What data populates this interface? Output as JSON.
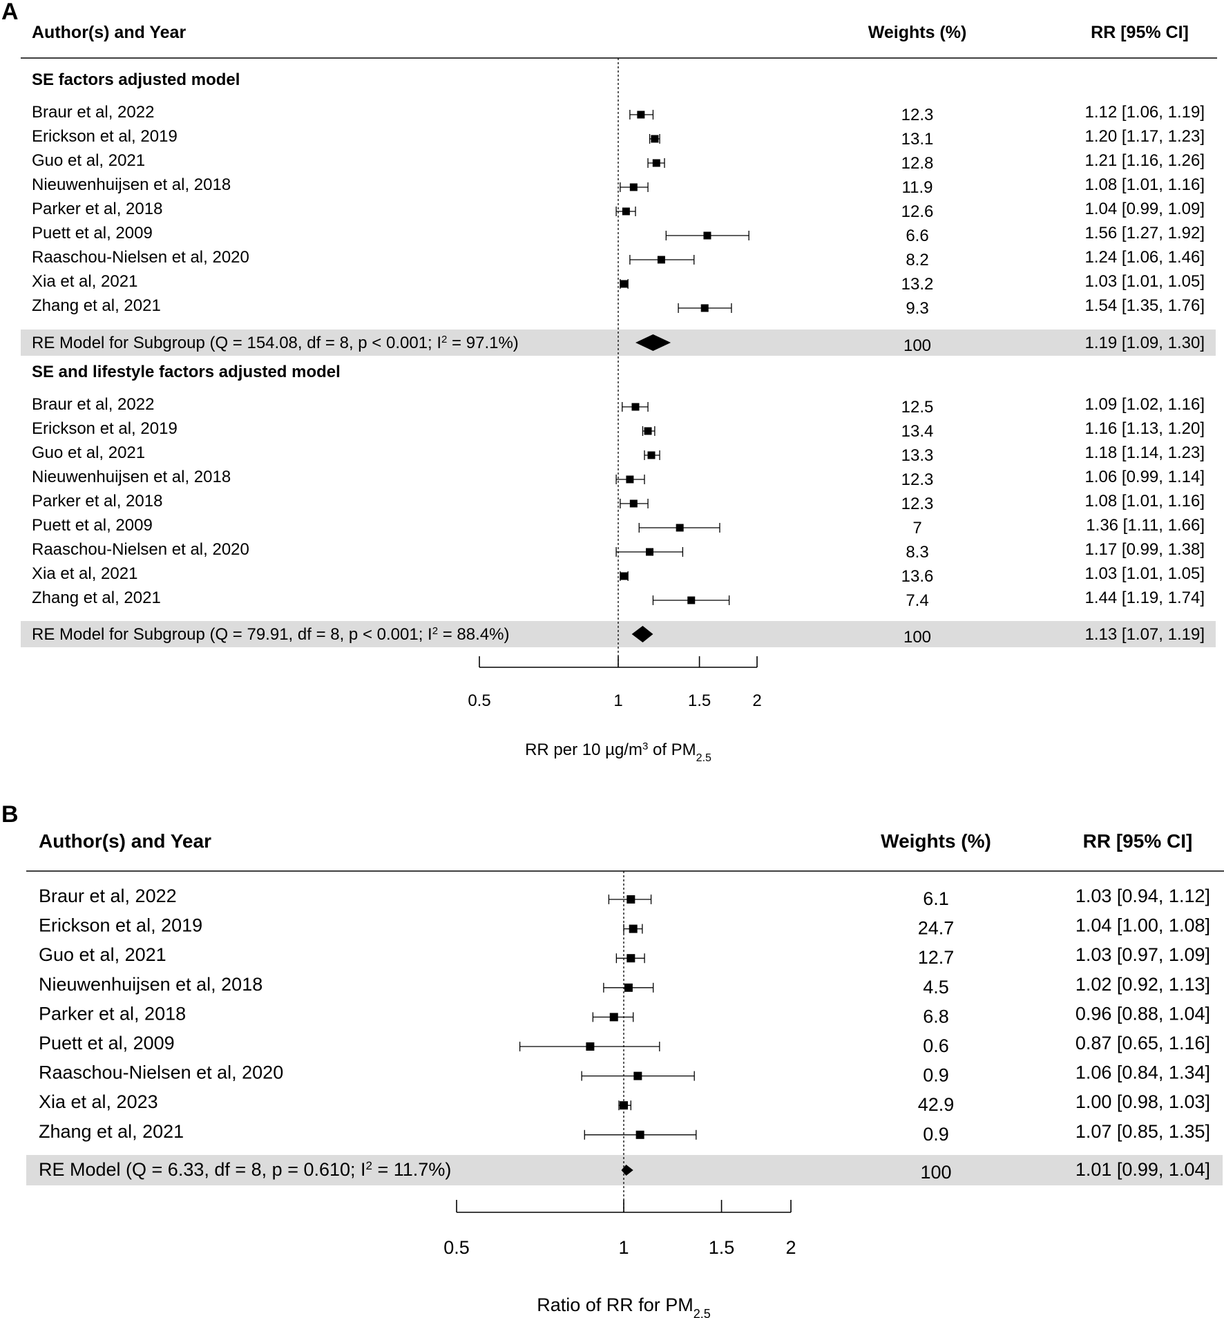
{
  "chart_data": [
    {
      "type": "forest",
      "panel_label": "A",
      "scale": "log",
      "header": {
        "study": "Author(s) and Year",
        "weights": "Weights (%)",
        "rr": "RR [95% CI]"
      },
      "xlabel": {
        "main": "RR per 10 µg/m",
        "sup": "3",
        "mid": " of PM",
        "sub": "2.5"
      },
      "xticks": [
        0.5,
        1,
        1.5,
        2
      ],
      "xtick_labels": [
        "0.5",
        "1",
        "1.5",
        "2"
      ],
      "xlim": [
        0.5,
        2
      ],
      "reference_line": 1,
      "groups": [
        {
          "title": "SE factors adjusted model",
          "studies": [
            {
              "name": "Braur et al, 2022",
              "rr": 1.12,
              "lo": 1.06,
              "hi": 1.19,
              "weight": "12.3",
              "label": "1.12 [1.06, 1.19]"
            },
            {
              "name": "Erickson et al, 2019",
              "rr": 1.2,
              "lo": 1.17,
              "hi": 1.23,
              "weight": "13.1",
              "label": "1.20 [1.17, 1.23]"
            },
            {
              "name": "Guo et al, 2021",
              "rr": 1.21,
              "lo": 1.16,
              "hi": 1.26,
              "weight": "12.8",
              "label": "1.21 [1.16, 1.26]"
            },
            {
              "name": "Nieuwenhuijsen et al, 2018",
              "rr": 1.08,
              "lo": 1.01,
              "hi": 1.16,
              "weight": "11.9",
              "label": "1.08 [1.01, 1.16]"
            },
            {
              "name": "Parker et al, 2018",
              "rr": 1.04,
              "lo": 0.99,
              "hi": 1.09,
              "weight": "12.6",
              "label": "1.04 [0.99, 1.09]"
            },
            {
              "name": "Puett et al, 2009",
              "rr": 1.56,
              "lo": 1.27,
              "hi": 1.92,
              "weight": "6.6",
              "label": "1.56 [1.27, 1.92]"
            },
            {
              "name": "Raaschou-Nielsen et al, 2020",
              "rr": 1.24,
              "lo": 1.06,
              "hi": 1.46,
              "weight": "8.2",
              "label": "1.24 [1.06, 1.46]"
            },
            {
              "name": "Xia et al, 2021",
              "rr": 1.03,
              "lo": 1.01,
              "hi": 1.05,
              "weight": "13.2",
              "label": "1.03 [1.01, 1.05]"
            },
            {
              "name": "Zhang et al, 2021",
              "rr": 1.54,
              "lo": 1.35,
              "hi": 1.76,
              "weight": "9.3",
              "label": "1.54 [1.35, 1.76]"
            }
          ],
          "summary": {
            "text": "RE Model for Subgroup (Q = 154.08, df = 8, p < 0.001; I",
            "sup": "2",
            "tail": " = 97.1%)",
            "rr": 1.19,
            "lo": 1.09,
            "hi": 1.3,
            "weight": "100",
            "label": "1.19 [1.09, 1.30]"
          }
        },
        {
          "title": "SE and lifestyle factors adjusted model",
          "studies": [
            {
              "name": "Braur et al, 2022",
              "rr": 1.09,
              "lo": 1.02,
              "hi": 1.16,
              "weight": "12.5",
              "label": "1.09 [1.02, 1.16]"
            },
            {
              "name": "Erickson et al, 2019",
              "rr": 1.16,
              "lo": 1.13,
              "hi": 1.2,
              "weight": "13.4",
              "label": "1.16 [1.13, 1.20]"
            },
            {
              "name": "Guo et al, 2021",
              "rr": 1.18,
              "lo": 1.14,
              "hi": 1.23,
              "weight": "13.3",
              "label": "1.18 [1.14, 1.23]"
            },
            {
              "name": "Nieuwenhuijsen et al, 2018",
              "rr": 1.06,
              "lo": 0.99,
              "hi": 1.14,
              "weight": "12.3",
              "label": "1.06 [0.99, 1.14]"
            },
            {
              "name": "Parker et al, 2018",
              "rr": 1.08,
              "lo": 1.01,
              "hi": 1.16,
              "weight": "12.3",
              "label": "1.08 [1.01, 1.16]"
            },
            {
              "name": "Puett et al, 2009",
              "rr": 1.36,
              "lo": 1.11,
              "hi": 1.66,
              "weight": "7",
              "label": "1.36 [1.11, 1.66]"
            },
            {
              "name": "Raaschou-Nielsen et al, 2020",
              "rr": 1.17,
              "lo": 0.99,
              "hi": 1.38,
              "weight": "8.3",
              "label": "1.17 [0.99, 1.38]"
            },
            {
              "name": "Xia et al, 2021",
              "rr": 1.03,
              "lo": 1.01,
              "hi": 1.05,
              "weight": "13.6",
              "label": "1.03 [1.01, 1.05]"
            },
            {
              "name": "Zhang et al, 2021",
              "rr": 1.44,
              "lo": 1.19,
              "hi": 1.74,
              "weight": "7.4",
              "label": "1.44 [1.19, 1.74]"
            }
          ],
          "summary": {
            "text": "RE Model for Subgroup (Q = 79.91, df = 8, p < 0.001; I",
            "sup": "2",
            "tail": " = 88.4%)",
            "rr": 1.13,
            "lo": 1.07,
            "hi": 1.19,
            "weight": "100",
            "label": "1.13 [1.07, 1.19]"
          }
        }
      ]
    },
    {
      "type": "forest",
      "panel_label": "B",
      "scale": "log",
      "header": {
        "study": "Author(s) and Year",
        "weights": "Weights (%)",
        "rr": "RR [95% CI]"
      },
      "xlabel": {
        "main": "Ratio of RR for PM",
        "sub": "2.5"
      },
      "xticks": [
        0.5,
        1,
        1.5,
        2
      ],
      "xtick_labels": [
        "0.5",
        "1",
        "1.5",
        "2"
      ],
      "xlim": [
        0.5,
        2
      ],
      "reference_line": 1,
      "groups": [
        {
          "title": "",
          "studies": [
            {
              "name": "Braur et al, 2022",
              "rr": 1.03,
              "lo": 0.94,
              "hi": 1.12,
              "weight": "6.1",
              "label": "1.03 [0.94, 1.12]"
            },
            {
              "name": "Erickson et al, 2019",
              "rr": 1.04,
              "lo": 1.0,
              "hi": 1.08,
              "weight": "24.7",
              "label": "1.04 [1.00, 1.08]"
            },
            {
              "name": "Guo et al, 2021",
              "rr": 1.03,
              "lo": 0.97,
              "hi": 1.09,
              "weight": "12.7",
              "label": "1.03 [0.97, 1.09]"
            },
            {
              "name": "Nieuwenhuijsen et al, 2018",
              "rr": 1.02,
              "lo": 0.92,
              "hi": 1.13,
              "weight": "4.5",
              "label": "1.02 [0.92, 1.13]"
            },
            {
              "name": "Parker et al, 2018",
              "rr": 0.96,
              "lo": 0.88,
              "hi": 1.04,
              "weight": "6.8",
              "label": "0.96 [0.88, 1.04]"
            },
            {
              "name": "Puett et al, 2009",
              "rr": 0.87,
              "lo": 0.65,
              "hi": 1.16,
              "weight": "0.6",
              "label": "0.87 [0.65, 1.16]"
            },
            {
              "name": "Raaschou-Nielsen et al, 2020",
              "rr": 1.06,
              "lo": 0.84,
              "hi": 1.34,
              "weight": "0.9",
              "label": "1.06 [0.84, 1.34]"
            },
            {
              "name": "Xia et al, 2023",
              "rr": 1.0,
              "lo": 0.98,
              "hi": 1.03,
              "weight": "42.9",
              "label": "1.00 [0.98, 1.03]"
            },
            {
              "name": "Zhang et al, 2021",
              "rr": 1.07,
              "lo": 0.85,
              "hi": 1.35,
              "weight": "0.9",
              "label": "1.07 [0.85, 1.35]"
            }
          ],
          "summary": {
            "text": "RE Model (Q = 6.33, df = 8, p = 0.610; I",
            "sup": "2",
            "tail": " = 11.7%)",
            "rr": 1.01,
            "lo": 0.99,
            "hi": 1.04,
            "weight": "100",
            "label": "1.01 [0.99, 1.04]"
          }
        }
      ]
    }
  ]
}
